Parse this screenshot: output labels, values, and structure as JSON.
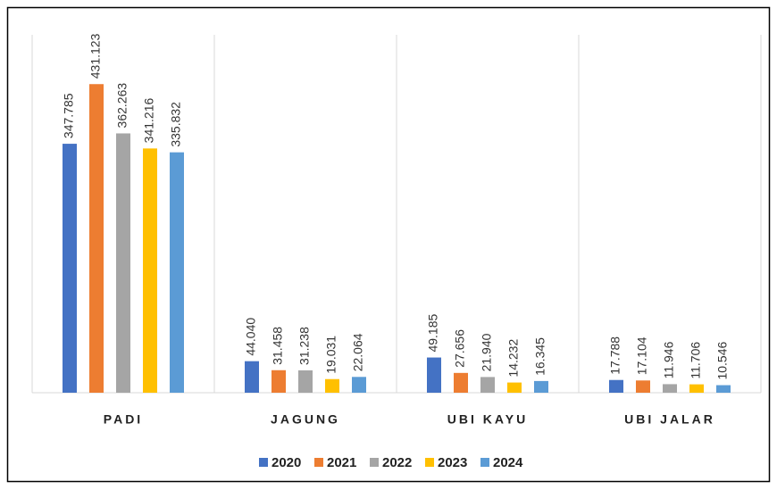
{
  "chart_data": {
    "type": "bar",
    "categories": [
      "PADI",
      "JAGUNG",
      "UBI KAYU",
      "UBI JALAR"
    ],
    "ylim": [
      0,
      500000
    ],
    "series": [
      {
        "name": "2020",
        "color": "#4472c4",
        "values": [
          347785,
          44040,
          49185,
          17788
        ],
        "value_labels": [
          "347.785",
          "44.040",
          "49.185",
          "17.788"
        ]
      },
      {
        "name": "2021",
        "color": "#ed7d31",
        "values": [
          431123,
          31458,
          27656,
          17104
        ],
        "value_labels": [
          "431.123",
          "31.458",
          "27.656",
          "17.104"
        ]
      },
      {
        "name": "2022",
        "color": "#a5a5a5",
        "values": [
          362263,
          31238,
          21940,
          11946
        ],
        "value_labels": [
          "362.263",
          "31.238",
          "21.940",
          "11.946"
        ]
      },
      {
        "name": "2023",
        "color": "#ffc000",
        "values": [
          341216,
          19031,
          14232,
          11706
        ],
        "value_labels": [
          "341.216",
          "19.031",
          "14.232",
          "11.706"
        ]
      },
      {
        "name": "2024",
        "color": "#5b9bd5",
        "values": [
          335832,
          22064,
          16345,
          10546
        ],
        "value_labels": [
          "335.832",
          "22.064",
          "16.345",
          "10.546"
        ]
      }
    ],
    "legend": "bottom"
  }
}
